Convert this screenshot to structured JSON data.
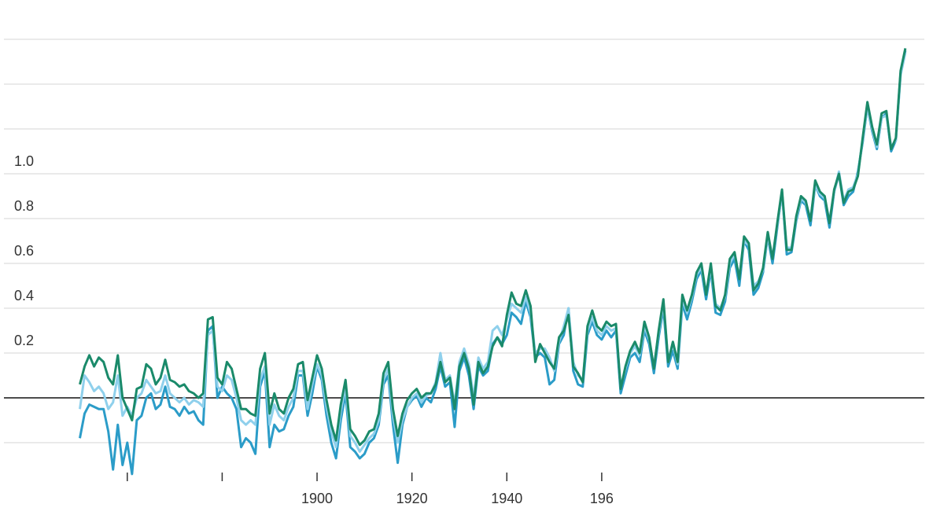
{
  "chart_data": {
    "type": "line",
    "x": [
      1850,
      1851,
      1852,
      1853,
      1854,
      1855,
      1856,
      1857,
      1858,
      1859,
      1860,
      1861,
      1862,
      1863,
      1864,
      1865,
      1866,
      1867,
      1868,
      1869,
      1870,
      1871,
      1872,
      1873,
      1874,
      1875,
      1876,
      1877,
      1878,
      1879,
      1880,
      1881,
      1882,
      1883,
      1884,
      1885,
      1886,
      1887,
      1888,
      1889,
      1890,
      1891,
      1892,
      1893,
      1894,
      1895,
      1896,
      1897,
      1898,
      1899,
      1900,
      1901,
      1902,
      1903,
      1904,
      1905,
      1906,
      1907,
      1908,
      1909,
      1910,
      1911,
      1912,
      1913,
      1914,
      1915,
      1916,
      1917,
      1918,
      1919,
      1920,
      1921,
      1922,
      1923,
      1924,
      1925,
      1926,
      1927,
      1928,
      1929,
      1930,
      1931,
      1932,
      1933,
      1934,
      1935,
      1936,
      1937,
      1938,
      1939,
      1940,
      1941,
      1942,
      1943,
      1944,
      1945,
      1946,
      1947,
      1948,
      1949,
      1950,
      1951,
      1952,
      1953,
      1954,
      1955,
      1956,
      1957,
      1958,
      1959,
      1960,
      1961,
      1962,
      1963,
      1964,
      1965,
      1966,
      1967,
      1968,
      1969,
      1970,
      1971,
      1972,
      1973,
      1974,
      1975,
      1976,
      1977,
      1978,
      1979,
      1980,
      1981,
      1982,
      1983,
      1984,
      1985,
      1986,
      1987,
      1988,
      1989,
      1990,
      1991,
      1992,
      1993,
      1994,
      1995,
      1996,
      1997,
      1998,
      1999,
      2000,
      2001,
      2002,
      2003,
      2004,
      2005,
      2006,
      2007,
      2008,
      2009,
      2010,
      2011,
      2012,
      2013,
      2014,
      2015,
      2016,
      2017,
      2018,
      2019,
      2020,
      2021,
      2022,
      2023,
      2024
    ],
    "series": [
      {
        "color": "#2b9cc8",
        "values": [
          -0.18,
          -0.07,
          -0.03,
          -0.04,
          -0.05,
          -0.05,
          -0.15,
          -0.32,
          -0.12,
          -0.3,
          -0.2,
          -0.34,
          -0.1,
          -0.08,
          0.0,
          0.02,
          -0.05,
          -0.03,
          0.05,
          -0.04,
          -0.05,
          -0.08,
          -0.04,
          -0.07,
          -0.06,
          -0.1,
          -0.12,
          0.3,
          0.32,
          0.0,
          0.05,
          0.02,
          0.0,
          -0.05,
          -0.22,
          -0.18,
          -0.2,
          -0.25,
          0.05,
          0.12,
          -0.22,
          -0.12,
          -0.15,
          -0.14,
          -0.08,
          -0.04,
          0.1,
          0.1,
          -0.08,
          0.02,
          0.14,
          0.08,
          -0.08,
          -0.2,
          -0.27,
          -0.1,
          0.02,
          -0.22,
          -0.24,
          -0.27,
          -0.25,
          -0.2,
          -0.18,
          -0.12,
          0.06,
          0.1,
          -0.12,
          -0.29,
          -0.12,
          -0.04,
          -0.01,
          0.01,
          -0.04,
          0.0,
          -0.02,
          0.04,
          0.14,
          0.05,
          0.07,
          -0.13,
          0.12,
          0.18,
          0.1,
          -0.05,
          0.14,
          0.1,
          0.12,
          0.24,
          0.27,
          0.24,
          0.28,
          0.38,
          0.36,
          0.33,
          0.43,
          0.36,
          0.18,
          0.2,
          0.18,
          0.06,
          0.08,
          0.24,
          0.28,
          0.4,
          0.12,
          0.06,
          0.05,
          0.28,
          0.34,
          0.28,
          0.26,
          0.3,
          0.27,
          0.3,
          0.02,
          0.1,
          0.18,
          0.2,
          0.16,
          0.3,
          0.24,
          0.11,
          0.27,
          0.4,
          0.14,
          0.21,
          0.13,
          0.42,
          0.35,
          0.43,
          0.53,
          0.57,
          0.44,
          0.57,
          0.38,
          0.37,
          0.43,
          0.58,
          0.62,
          0.5,
          0.7,
          0.66,
          0.46,
          0.49,
          0.56,
          0.72,
          0.6,
          0.76,
          0.92,
          0.64,
          0.65,
          0.79,
          0.88,
          0.86,
          0.77,
          0.95,
          0.9,
          0.88,
          0.76,
          0.92,
          1.0,
          0.86,
          0.9,
          0.92,
          1.01,
          1.14,
          1.3,
          1.19,
          1.11,
          1.25,
          1.27,
          1.1,
          1.15,
          1.45,
          1.55
        ]
      },
      {
        "color": "#8fd0ec",
        "values": [
          -0.05,
          0.1,
          0.07,
          0.03,
          0.05,
          0.02,
          -0.05,
          -0.02,
          0.1,
          -0.08,
          -0.04,
          -0.08,
          0.0,
          0.02,
          0.08,
          0.05,
          0.02,
          0.03,
          0.1,
          0.02,
          0.0,
          -0.02,
          0.0,
          -0.03,
          -0.01,
          -0.02,
          -0.04,
          0.28,
          0.3,
          0.05,
          0.03,
          0.1,
          0.08,
          0.0,
          -0.1,
          -0.12,
          -0.1,
          -0.12,
          0.08,
          0.14,
          -0.12,
          -0.03,
          -0.08,
          -0.1,
          -0.04,
          0.0,
          0.12,
          0.12,
          -0.05,
          0.06,
          0.15,
          0.1,
          -0.04,
          -0.15,
          -0.22,
          -0.06,
          0.05,
          -0.17,
          -0.2,
          -0.24,
          -0.21,
          -0.18,
          -0.16,
          -0.1,
          0.08,
          0.13,
          -0.08,
          -0.2,
          -0.1,
          -0.04,
          0.0,
          0.02,
          -0.02,
          0.01,
          0.02,
          0.07,
          0.2,
          0.08,
          0.1,
          -0.03,
          0.16,
          0.22,
          0.15,
          0.0,
          0.18,
          0.13,
          0.16,
          0.3,
          0.32,
          0.28,
          0.35,
          0.42,
          0.4,
          0.38,
          0.45,
          0.38,
          0.2,
          0.22,
          0.22,
          0.18,
          0.12,
          0.25,
          0.32,
          0.4,
          0.16,
          0.1,
          0.08,
          0.3,
          0.36,
          0.3,
          0.28,
          0.32,
          0.3,
          0.31,
          0.05,
          0.13,
          0.2,
          0.23,
          0.19,
          0.32,
          0.26,
          0.14,
          0.29,
          0.42,
          0.17,
          0.24,
          0.15,
          0.44,
          0.38,
          0.45,
          0.55,
          0.58,
          0.47,
          0.58,
          0.42,
          0.4,
          0.45,
          0.6,
          0.64,
          0.54,
          0.7,
          0.68,
          0.5,
          0.52,
          0.57,
          0.72,
          0.63,
          0.77,
          0.91,
          0.67,
          0.67,
          0.8,
          0.89,
          0.87,
          0.8,
          0.95,
          0.91,
          0.89,
          0.79,
          0.92,
          1.01,
          0.88,
          0.93,
          0.94,
          1.0,
          1.15,
          1.3,
          1.2,
          1.12,
          1.25,
          1.26,
          1.12,
          1.15,
          1.44,
          1.54
        ]
      },
      {
        "color": "#1a8a6a",
        "values": [
          0.06,
          0.14,
          0.19,
          0.14,
          0.18,
          0.16,
          0.09,
          0.06,
          0.19,
          0.0,
          -0.05,
          -0.1,
          0.04,
          0.05,
          0.15,
          0.13,
          0.06,
          0.09,
          0.17,
          0.08,
          0.07,
          0.05,
          0.06,
          0.03,
          0.02,
          0.0,
          0.02,
          0.35,
          0.36,
          0.09,
          0.06,
          0.16,
          0.13,
          0.04,
          -0.05,
          -0.05,
          -0.07,
          -0.08,
          0.13,
          0.2,
          -0.07,
          0.02,
          -0.05,
          -0.07,
          0.0,
          0.04,
          0.15,
          0.16,
          -0.01,
          0.09,
          0.19,
          0.13,
          -0.01,
          -0.12,
          -0.19,
          -0.03,
          0.08,
          -0.14,
          -0.17,
          -0.21,
          -0.19,
          -0.15,
          -0.14,
          -0.07,
          0.11,
          0.16,
          -0.05,
          -0.17,
          -0.07,
          -0.01,
          0.02,
          0.04,
          0.0,
          0.02,
          0.02,
          0.06,
          0.16,
          0.07,
          0.09,
          -0.05,
          0.14,
          0.2,
          0.13,
          -0.03,
          0.16,
          0.11,
          0.14,
          0.23,
          0.27,
          0.23,
          0.37,
          0.47,
          0.42,
          0.41,
          0.48,
          0.41,
          0.16,
          0.24,
          0.2,
          0.16,
          0.13,
          0.27,
          0.3,
          0.37,
          0.14,
          0.11,
          0.07,
          0.32,
          0.39,
          0.32,
          0.3,
          0.34,
          0.32,
          0.33,
          0.04,
          0.14,
          0.21,
          0.25,
          0.2,
          0.34,
          0.27,
          0.13,
          0.3,
          0.44,
          0.16,
          0.25,
          0.16,
          0.46,
          0.39,
          0.46,
          0.56,
          0.6,
          0.46,
          0.6,
          0.41,
          0.39,
          0.46,
          0.62,
          0.65,
          0.53,
          0.72,
          0.69,
          0.48,
          0.51,
          0.58,
          0.74,
          0.62,
          0.78,
          0.93,
          0.66,
          0.66,
          0.81,
          0.9,
          0.88,
          0.79,
          0.97,
          0.92,
          0.9,
          0.78,
          0.93,
          1.0,
          0.87,
          0.92,
          0.93,
          0.99,
          1.16,
          1.32,
          1.21,
          1.13,
          1.27,
          1.28,
          1.11,
          1.16,
          1.46,
          1.56
        ]
      }
    ],
    "xlim": [
      1834,
      2028
    ],
    "xticks": [
      {
        "value": 1860
      },
      {
        "value": 1880
      },
      1900,
      1920,
      1940,
      {
        "value": 1960,
        "label": "196"
      }
    ],
    "ylim": [
      -0.2,
      1.6
    ],
    "yticks": [
      {
        "value": 0.2,
        "label": "0.2"
      },
      {
        "value": 0.4,
        "label": "0.4"
      },
      {
        "value": 0.6,
        "label": "0.6"
      },
      {
        "value": 0.8,
        "label": "0.8"
      },
      {
        "value": 1,
        "label": "1.0"
      }
    ],
    "ygrid_unlabeled": [
      -0.2,
      1.2,
      1.4,
      1.6
    ],
    "baseline": 0,
    "grid": true
  }
}
